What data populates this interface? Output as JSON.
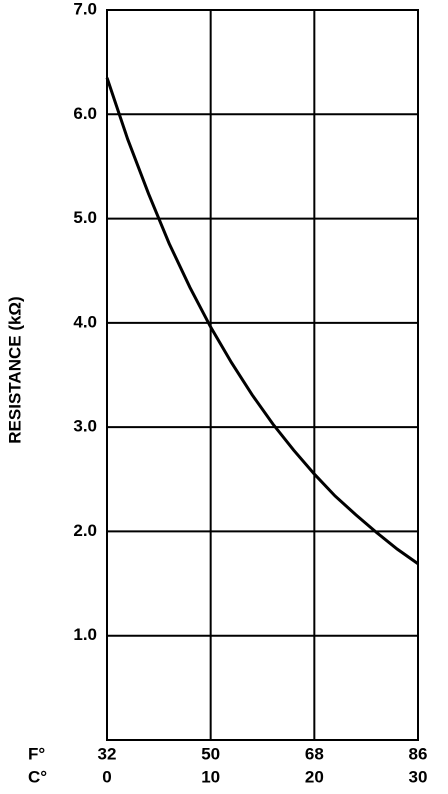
{
  "chart_data": {
    "type": "line",
    "ylabel": "RESISTANCE (kΩ)",
    "x_row_labels": [
      "F°",
      "C°"
    ],
    "x": [
      0,
      2,
      4,
      6,
      8,
      10,
      12,
      14,
      16,
      18,
      20,
      22,
      24,
      26,
      28,
      30
    ],
    "series": [
      {
        "color": "#000000",
        "values": [
          6.35,
          5.76,
          5.24,
          4.76,
          4.34,
          3.96,
          3.62,
          3.31,
          3.03,
          2.78,
          2.55,
          2.34,
          2.16,
          1.99,
          1.83,
          1.69
        ]
      }
    ],
    "xlim": [
      0,
      30
    ],
    "xticks": [
      0,
      10,
      20,
      30
    ],
    "fahrenheit_ticks": [
      {
        "value": 0,
        "label": "32"
      },
      {
        "value": 10,
        "label": "50"
      },
      {
        "value": 20,
        "label": "68"
      },
      {
        "value": 30,
        "label": "86"
      }
    ],
    "ylim": [
      0,
      7
    ],
    "yticks": [
      {
        "value": 1,
        "label": "1.0"
      },
      {
        "value": 2,
        "label": "2.0"
      },
      {
        "value": 3,
        "label": "3.0"
      },
      {
        "value": 4,
        "label": "4.0"
      },
      {
        "value": 5,
        "label": "5.0"
      },
      {
        "value": 6,
        "label": "6.0"
      },
      {
        "value": 7,
        "label": "7.0"
      }
    ],
    "grid": true
  }
}
